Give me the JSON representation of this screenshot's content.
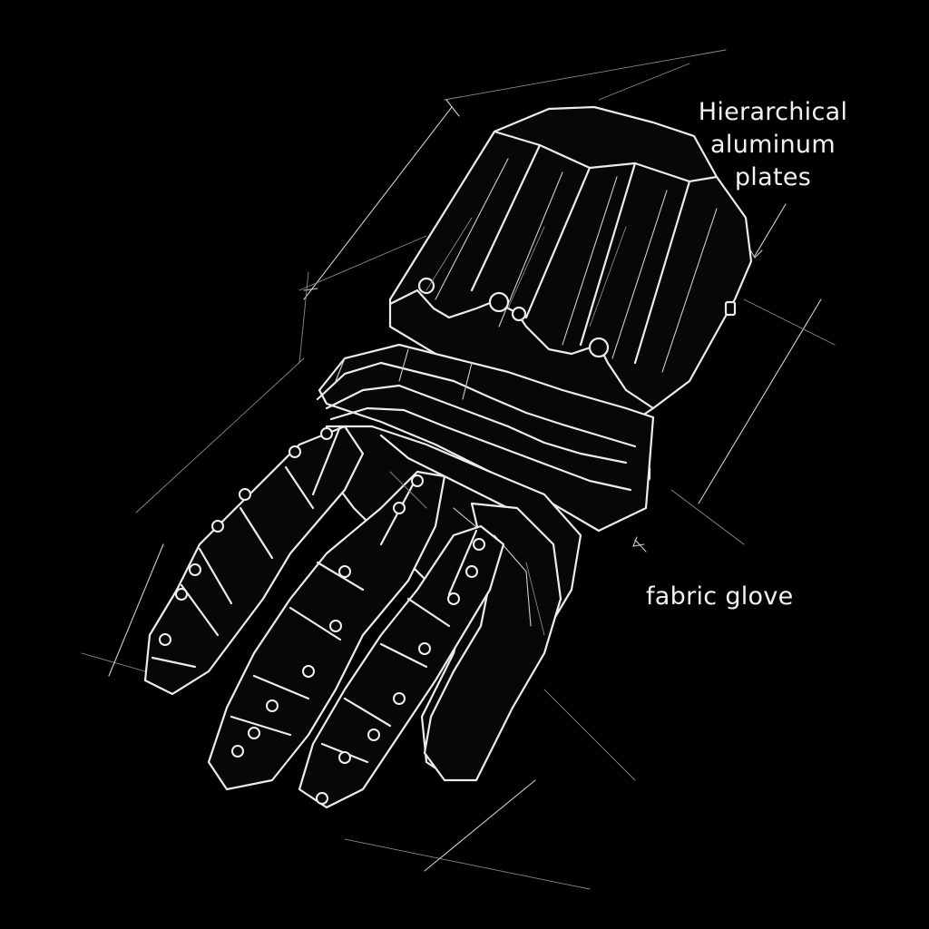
{
  "annotations": {
    "plates": [
      "Hierarchical",
      "aluminum",
      "plates"
    ],
    "glove": "fabric glove"
  },
  "style": {
    "background": "#000000",
    "line_color": "#ececec"
  }
}
